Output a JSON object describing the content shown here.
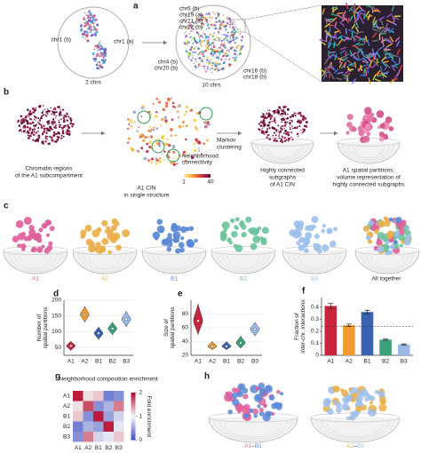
{
  "panel_a": {
    "label": "a",
    "left_labels": [
      "chr1 (b)",
      "chr1 (a)"
    ],
    "left_caption": "2 chrs",
    "right_top_labels": [
      "chr6 (b)",
      "chr19 (a)",
      "chr21 (a)",
      "chr22 (b)"
    ],
    "right_bottom_left_labels": [
      "chr4 (b)",
      "chr20 (b)"
    ],
    "right_bottom_right_labels": [
      "chr16 (b)",
      "chr18 (b)"
    ],
    "right_caption": "10 chrs"
  },
  "panel_b": {
    "label": "b",
    "regions_caption": [
      "Chromatin regions",
      "of the A1 subcompartment"
    ],
    "connectivity_label": [
      "Neighborhood",
      "connectivity"
    ],
    "colorbar_ticks": [
      1,
      40
    ],
    "cin_caption": [
      "A1 CIN",
      "in single structure"
    ],
    "step_label": [
      "Markov",
      "clustering"
    ],
    "subgraph_caption": [
      "Highly connected",
      "subgraphs",
      "of A1 CIN"
    ],
    "partition_caption": [
      "A1 spatial partitions;",
      "volume representation of",
      "highly connected subgraphs"
    ]
  },
  "panel_c": {
    "label": "c",
    "subcompartments": [
      {
        "name": "A1",
        "color": "#e0609c"
      },
      {
        "name": "A2",
        "color": "#eab04a"
      },
      {
        "name": "B1",
        "color": "#5a88d6"
      },
      {
        "name": "B2",
        "color": "#6cc49c"
      },
      {
        "name": "B3",
        "color": "#9cc0ec"
      }
    ],
    "all_caption": "All together"
  },
  "chart_data": [
    {
      "type": "violin",
      "panel_label": "d",
      "y_label": [
        "Number of",
        "spatial partitions"
      ],
      "categories": [
        "A1",
        "A2",
        "B1",
        "B2",
        "B3"
      ],
      "colors": [
        "#c8243c",
        "#f09a30",
        "#3a62b0",
        "#3aa07a",
        "#9ab8e8"
      ],
      "values": [
        55,
        155,
        95,
        110,
        140
      ],
      "lows": [
        40,
        130,
        75,
        90,
        115
      ],
      "highs": [
        70,
        180,
        115,
        130,
        165
      ],
      "ylim": [
        25,
        200
      ],
      "yticks": [
        50,
        100,
        150,
        200
      ],
      "grid": true
    },
    {
      "type": "violin",
      "panel_label": "e",
      "y_label": [
        "Size of",
        "spatial partitions"
      ],
      "categories": [
        "A1",
        "A2",
        "B1",
        "B2",
        "B3"
      ],
      "colors": [
        "#c8243c",
        "#f09a30",
        "#3a62b0",
        "#3aa07a",
        "#9ab8e8"
      ],
      "values": [
        70,
        33,
        33,
        38,
        58
      ],
      "lows": [
        50,
        28,
        28,
        30,
        48
      ],
      "highs": [
        95,
        40,
        40,
        48,
        68
      ],
      "ylim": [
        20,
        100
      ],
      "yticks": [
        20,
        40,
        60,
        80
      ],
      "grid": true
    },
    {
      "type": "bar",
      "panel_label": "f",
      "y_label": [
        "Fraction of",
        "inter-chr. interactions"
      ],
      "categories": [
        "A1",
        "A2",
        "B1",
        "B2",
        "B3"
      ],
      "colors": [
        "#c8243c",
        "#f09a30",
        "#3a62b0",
        "#3aa07a",
        "#9ab8e8"
      ],
      "values": [
        0.41,
        0.25,
        0.36,
        0.13,
        0.09
      ],
      "errors": [
        0.02,
        0.01,
        0.015,
        0.005,
        0.005
      ],
      "reference_line": 0.24,
      "ylim": [
        0,
        0.48
      ],
      "yticks": [
        0,
        0.1,
        0.2,
        0.3,
        0.4
      ],
      "grid": false
    },
    {
      "type": "heatmap",
      "panel_label": "g",
      "title": "Neighborhood composition enrichment",
      "categories": [
        "A1",
        "A2",
        "B1",
        "B2",
        "B3"
      ],
      "colorbar_label": "Fold enrichment",
      "values": [
        [
          1.9,
          1.1,
          1.2,
          0.3,
          0.4
        ],
        [
          1.1,
          1.7,
          0.4,
          0.6,
          1.5
        ],
        [
          1.2,
          0.4,
          1.9,
          0.5,
          0.8
        ],
        [
          0.3,
          0.6,
          0.5,
          1.9,
          0.9
        ],
        [
          0.4,
          1.5,
          0.8,
          0.9,
          1.2
        ]
      ],
      "clim": [
        0,
        2
      ],
      "cticks": [
        0,
        1,
        2
      ]
    }
  ],
  "panel_h": {
    "label": "h",
    "captions": [
      [
        "A1",
        "–",
        "B1"
      ],
      [
        "A2",
        "–",
        "B3"
      ]
    ]
  }
}
